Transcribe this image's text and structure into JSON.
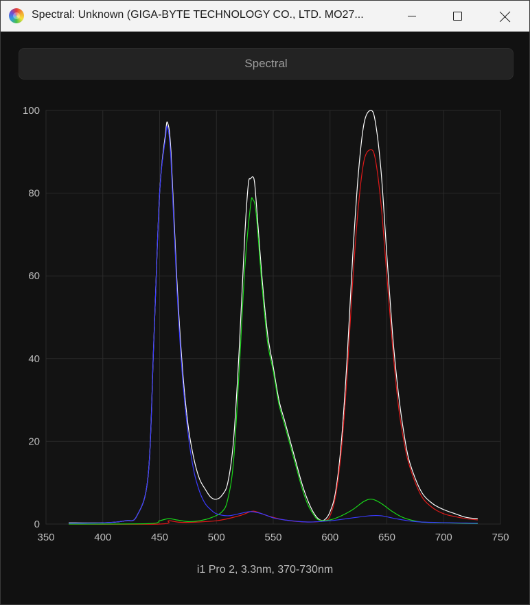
{
  "window": {
    "title": "Spectral: Unknown (GIGA-BYTE TECHNOLOGY CO., LTD. MO27...",
    "app_icon": "spectral-app-icon",
    "controls": [
      "minimize-icon",
      "maximize-icon",
      "close-icon"
    ]
  },
  "toolbar": {
    "spectral_button_label": "Spectral"
  },
  "footer": {
    "caption": "i1 Pro 2, 3.3nm, 370-730nm"
  },
  "colors": {
    "white_series": "#ffffff",
    "red_series": "#e01919",
    "green_series": "#19d619",
    "blue_series": "#3a3aff",
    "grid": "#2a2a2a",
    "tick_label": "#bdbdbd"
  },
  "chart_data": {
    "type": "line",
    "title": "",
    "xlabel": "",
    "ylabel": "",
    "xlim": [
      350,
      750
    ],
    "ylim": [
      0,
      100
    ],
    "xticks": [
      350,
      400,
      450,
      500,
      550,
      600,
      650,
      700,
      750
    ],
    "yticks": [
      0,
      20,
      40,
      60,
      80,
      100
    ],
    "grid": true,
    "legend": "none",
    "series": [
      {
        "color": "#ffffff",
        "points": [
          [
            370,
            0.3
          ],
          [
            400,
            0.3
          ],
          [
            420,
            0.8
          ],
          [
            430,
            2
          ],
          [
            440,
            12
          ],
          [
            445,
            45
          ],
          [
            450,
            80
          ],
          [
            455,
            94
          ],
          [
            457,
            97
          ],
          [
            460,
            90
          ],
          [
            465,
            60
          ],
          [
            470,
            38
          ],
          [
            475,
            24
          ],
          [
            480,
            16
          ],
          [
            485,
            11
          ],
          [
            490,
            8.5
          ],
          [
            495,
            6.5
          ],
          [
            500,
            6
          ],
          [
            505,
            7
          ],
          [
            510,
            10
          ],
          [
            515,
            20
          ],
          [
            520,
            42
          ],
          [
            525,
            70
          ],
          [
            528,
            82
          ],
          [
            530,
            83.5
          ],
          [
            533,
            83.5
          ],
          [
            535,
            78
          ],
          [
            540,
            60
          ],
          [
            545,
            46
          ],
          [
            550,
            38
          ],
          [
            555,
            30
          ],
          [
            560,
            25
          ],
          [
            565,
            20
          ],
          [
            570,
            15
          ],
          [
            575,
            10
          ],
          [
            580,
            6
          ],
          [
            585,
            3
          ],
          [
            590,
            1.2
          ],
          [
            595,
            1
          ],
          [
            600,
            3
          ],
          [
            605,
            8
          ],
          [
            610,
            20
          ],
          [
            615,
            40
          ],
          [
            620,
            65
          ],
          [
            625,
            85
          ],
          [
            630,
            97
          ],
          [
            636,
            100
          ],
          [
            640,
            97
          ],
          [
            645,
            85
          ],
          [
            650,
            65
          ],
          [
            655,
            46
          ],
          [
            660,
            32
          ],
          [
            665,
            22
          ],
          [
            670,
            15
          ],
          [
            680,
            8
          ],
          [
            690,
            5
          ],
          [
            700,
            3.5
          ],
          [
            710,
            2.5
          ],
          [
            720,
            1.6
          ],
          [
            730,
            1.3
          ]
        ]
      },
      {
        "color": "#e01919",
        "points": [
          [
            370,
            0
          ],
          [
            450,
            0
          ],
          [
            458,
            0.8
          ],
          [
            470,
            0.4
          ],
          [
            500,
            0.8
          ],
          [
            520,
            2
          ],
          [
            530,
            3
          ],
          [
            535,
            3
          ],
          [
            545,
            2
          ],
          [
            560,
            1
          ],
          [
            580,
            0.5
          ],
          [
            595,
            0.8
          ],
          [
            600,
            2
          ],
          [
            605,
            7
          ],
          [
            610,
            18
          ],
          [
            615,
            36
          ],
          [
            620,
            59
          ],
          [
            625,
            77
          ],
          [
            630,
            88
          ],
          [
            636,
            90.5
          ],
          [
            640,
            88
          ],
          [
            645,
            77
          ],
          [
            650,
            60
          ],
          [
            655,
            43
          ],
          [
            660,
            29
          ],
          [
            665,
            20
          ],
          [
            670,
            14
          ],
          [
            680,
            7
          ],
          [
            690,
            4
          ],
          [
            700,
            2.5
          ],
          [
            710,
            1.8
          ],
          [
            720,
            1.3
          ],
          [
            730,
            1
          ]
        ]
      },
      {
        "color": "#19d619",
        "points": [
          [
            370,
            0
          ],
          [
            440,
            0.1
          ],
          [
            450,
            0.8
          ],
          [
            458,
            1.3
          ],
          [
            465,
            1
          ],
          [
            475,
            0.6
          ],
          [
            485,
            0.8
          ],
          [
            495,
            1.5
          ],
          [
            505,
            3
          ],
          [
            510,
            6
          ],
          [
            515,
            15
          ],
          [
            520,
            37
          ],
          [
            525,
            62
          ],
          [
            530,
            77
          ],
          [
            532,
            78.5
          ],
          [
            535,
            75
          ],
          [
            540,
            58
          ],
          [
            545,
            44
          ],
          [
            550,
            37
          ],
          [
            555,
            29
          ],
          [
            560,
            24
          ],
          [
            565,
            19
          ],
          [
            570,
            14
          ],
          [
            575,
            9
          ],
          [
            580,
            5
          ],
          [
            585,
            2.5
          ],
          [
            590,
            1
          ],
          [
            600,
            1
          ],
          [
            610,
            2
          ],
          [
            620,
            3.5
          ],
          [
            630,
            5.5
          ],
          [
            637,
            6
          ],
          [
            645,
            5
          ],
          [
            655,
            3
          ],
          [
            665,
            1.5
          ],
          [
            680,
            0.5
          ],
          [
            700,
            0.3
          ],
          [
            730,
            0.1
          ]
        ]
      },
      {
        "color": "#3a3aff",
        "points": [
          [
            370,
            0.2
          ],
          [
            400,
            0.3
          ],
          [
            420,
            0.8
          ],
          [
            430,
            2
          ],
          [
            440,
            12
          ],
          [
            445,
            45
          ],
          [
            450,
            80
          ],
          [
            455,
            93
          ],
          [
            457,
            96
          ],
          [
            460,
            88
          ],
          [
            465,
            58
          ],
          [
            470,
            36
          ],
          [
            475,
            22
          ],
          [
            480,
            13
          ],
          [
            485,
            8
          ],
          [
            490,
            5
          ],
          [
            495,
            3.5
          ],
          [
            500,
            2.5
          ],
          [
            510,
            2
          ],
          [
            520,
            2.5
          ],
          [
            530,
            3
          ],
          [
            540,
            2.5
          ],
          [
            550,
            1.5
          ],
          [
            560,
            1
          ],
          [
            580,
            0.5
          ],
          [
            600,
            0.8
          ],
          [
            620,
            1.5
          ],
          [
            635,
            2
          ],
          [
            645,
            2
          ],
          [
            660,
            1.2
          ],
          [
            680,
            0.5
          ],
          [
            730,
            0.2
          ]
        ]
      }
    ]
  }
}
